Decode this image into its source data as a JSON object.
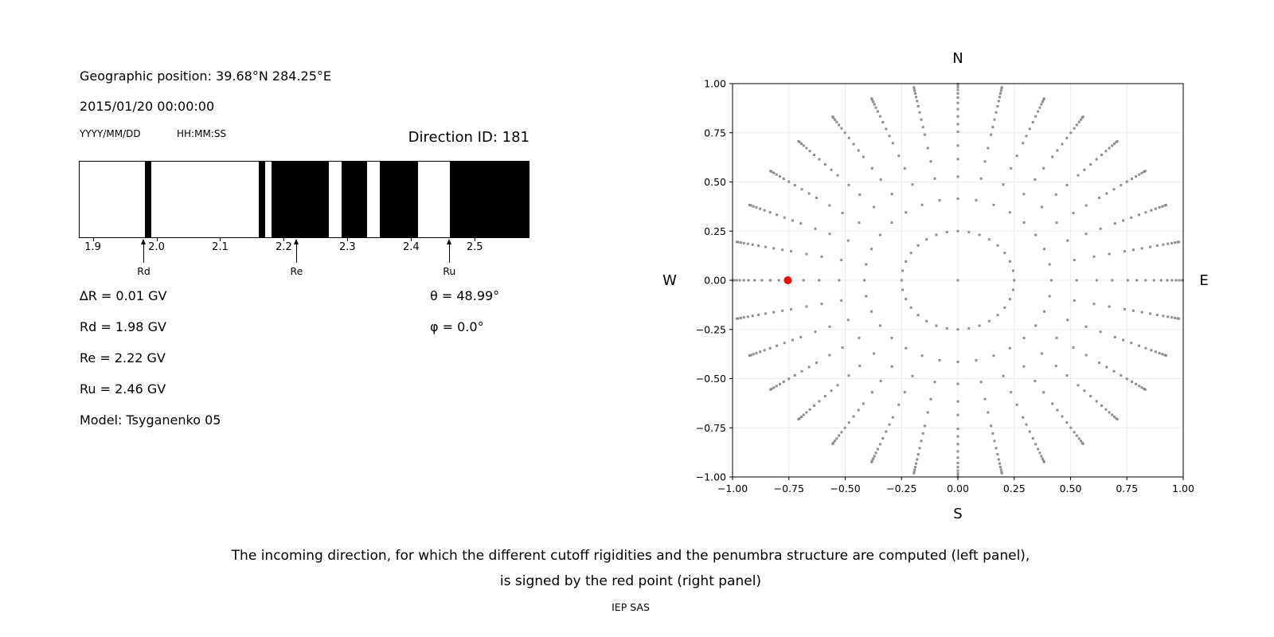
{
  "left_panel": {
    "geo_position": "Geographic position: 39.68°N 284.25°E",
    "datetime": "2015/01/20 00:00:00",
    "date_format_hint": "YYYY/MM/DD",
    "time_format_hint": "HH:MM:SS",
    "direction_id": "Direction ID: 181",
    "values": {
      "delta_r": "∆R = 0.01 GV",
      "rd": "Rd = 1.98 GV",
      "re": "Re = 2.22 GV",
      "ru": "Ru = 2.46 GV",
      "theta": "θ = 48.99°",
      "phi": "φ = 0.0°",
      "model": "Model: Tsyganenko 05"
    }
  },
  "caption": {
    "line1": "The incoming direction, for which the different cutoff rigidities and the penumbra structure are computed (left panel),",
    "line2": "is signed by the red point (right panel)",
    "credit": "IEP SAS"
  },
  "chart_data": [
    {
      "type": "bar",
      "name": "penumbra-structure",
      "description": "Cosmic ray penumbra: black = forbidden rigidity bands, white = allowed, rigidity in GV",
      "x_range_gv": [
        1.878,
        2.586
      ],
      "x_ticks": [
        {
          "value": 1.9,
          "label": "1.9"
        },
        {
          "value": 2.0,
          "label": "2.0"
        },
        {
          "value": 2.1,
          "label": "2.1"
        },
        {
          "value": 2.2,
          "label": "2.2"
        },
        {
          "value": 2.3,
          "label": "2.3"
        },
        {
          "value": 2.4,
          "label": "2.4"
        },
        {
          "value": 2.5,
          "label": "2.5"
        }
      ],
      "forbidden_bands_gv": [
        [
          1.98,
          1.99
        ],
        [
          2.16,
          2.17
        ],
        [
          2.18,
          2.27
        ],
        [
          2.29,
          2.33
        ],
        [
          2.35,
          2.41
        ],
        [
          2.46,
          2.586
        ]
      ],
      "forbidden_color": "#000000",
      "allowed_color": "#ffffff",
      "arrows": [
        {
          "label": "Rd",
          "value_gv": 1.98
        },
        {
          "label": "Re",
          "value_gv": 2.22
        },
        {
          "label": "Ru",
          "value_gv": 2.46
        }
      ]
    },
    {
      "type": "scatter",
      "name": "incoming-direction-grid",
      "description": "Grid of incoming directions on sky projection; red point marks Direction ID 181",
      "xlim": [
        -1,
        1
      ],
      "ylim": [
        -1,
        1
      ],
      "x_ticks": [
        {
          "value": -1.0,
          "label": "−1.00"
        },
        {
          "value": -0.75,
          "label": "−0.75"
        },
        {
          "value": -0.5,
          "label": "−0.50"
        },
        {
          "value": -0.25,
          "label": "−0.25"
        },
        {
          "value": 0.0,
          "label": "0.00"
        },
        {
          "value": 0.25,
          "label": "0.25"
        },
        {
          "value": 0.5,
          "label": "0.50"
        },
        {
          "value": 0.75,
          "label": "0.75"
        },
        {
          "value": 1.0,
          "label": "1.00"
        }
      ],
      "y_ticks": [
        {
          "value": 1.0,
          "label": "1.00"
        },
        {
          "value": 0.75,
          "label": "0.75"
        },
        {
          "value": 0.5,
          "label": "0.50"
        },
        {
          "value": 0.25,
          "label": "0.25"
        },
        {
          "value": 0.0,
          "label": "0.00"
        },
        {
          "value": -0.25,
          "label": "−0.25"
        },
        {
          "value": -0.5,
          "label": "−0.50"
        },
        {
          "value": -0.75,
          "label": "−0.75"
        },
        {
          "value": -1.0,
          "label": "−1.00"
        }
      ],
      "cardinal_labels": {
        "top": "N",
        "bottom": "S",
        "left": "W",
        "right": "E"
      },
      "grid": true,
      "grid_color": "#ebebeb",
      "azimuth_count": 32,
      "ring_radii": [
        0.25,
        0.415,
        0.527,
        0.616,
        0.685,
        0.7547,
        0.794,
        0.833,
        0.87,
        0.902,
        0.929,
        0.95,
        0.968,
        0.982,
        0.994,
        1.0
      ],
      "center_dot": true,
      "dot_color": "#8f8f8f",
      "selected_point": {
        "x": -0.7547,
        "y": 0.0,
        "color": "#ff0000",
        "meaning": "incoming direction of Direction ID 181"
      }
    }
  ]
}
